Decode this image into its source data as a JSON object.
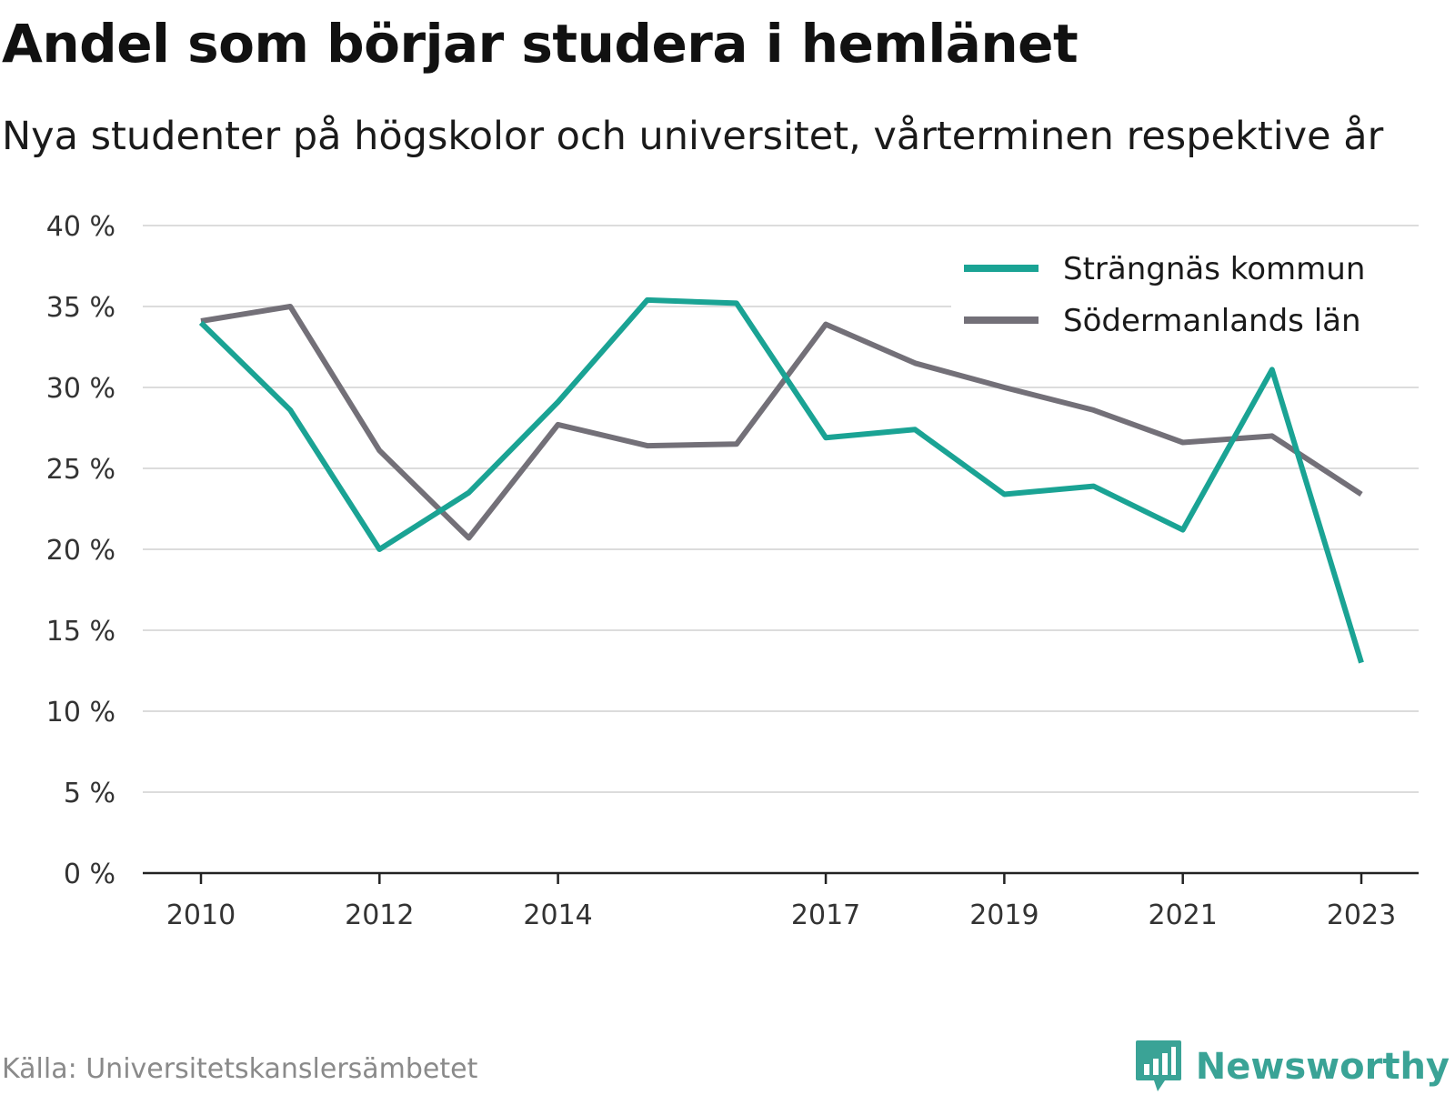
{
  "title": "Andel som börjar studera i hemlänet",
  "subtitle": "Nya studenter på högskolor och universitet, vårterminen respektive år",
  "source": "Källa: Universitetskanslersämbetet",
  "brand": {
    "name": "Newsworthy",
    "icon": "newsworthy-logo-icon",
    "color": "#3aa396"
  },
  "chart_data": {
    "type": "line",
    "title": "Andel som börjar studera i hemlänet",
    "subtitle": "Nya studenter på högskolor och universitet, vårterminen respektive år",
    "x": [
      2010,
      2011,
      2012,
      2013,
      2014,
      2015,
      2016,
      2017,
      2018,
      2019,
      2020,
      2021,
      2022,
      2023
    ],
    "x_ticks": [
      2010,
      2012,
      2014,
      2017,
      2019,
      2021,
      2023
    ],
    "x_tick_labels": [
      "2010",
      "2012",
      "2014",
      "2017",
      "2019",
      "2021",
      "2023"
    ],
    "y_ticks": [
      0,
      5,
      10,
      15,
      20,
      25,
      30,
      35,
      40
    ],
    "y_tick_labels": [
      "0 %",
      "5 %",
      "10 %",
      "15 %",
      "20 %",
      "25 %",
      "30 %",
      "35 %",
      "40 %"
    ],
    "ylim": [
      0,
      40
    ],
    "y_unit": "%",
    "grid": "horizontal",
    "legend_position": "top-right",
    "series": [
      {
        "name": "Strängnäs kommun",
        "color": "#1aa394",
        "values": [
          34.0,
          28.6,
          20.0,
          23.5,
          29.1,
          35.4,
          35.2,
          26.9,
          27.4,
          23.4,
          23.9,
          21.2,
          31.1,
          13.0
        ]
      },
      {
        "name": "Södermanlands län",
        "color": "#737078",
        "values": [
          34.1,
          35.0,
          26.1,
          20.7,
          27.7,
          26.4,
          26.5,
          33.9,
          31.5,
          30.0,
          28.6,
          26.6,
          27.0,
          23.4
        ]
      }
    ]
  }
}
